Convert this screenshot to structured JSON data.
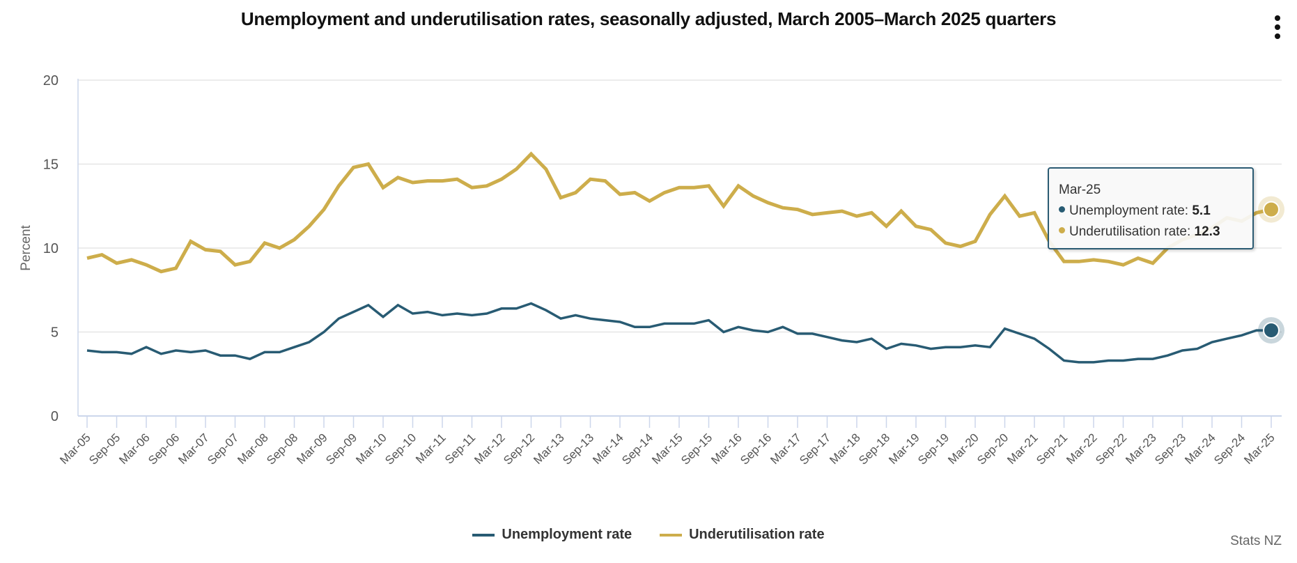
{
  "title": "Unemployment and underutilisation rates, seasonally adjusted, March 2005–March 2025 quarters",
  "menu_icon": "kebab-menu-icon",
  "credit": "Stats NZ",
  "colors": {
    "unemployment": "#285b73",
    "underutilisation": "#cdad4b",
    "grid": "#e6e6e6",
    "axis": "#ccd6eb"
  },
  "tooltip": {
    "date": "Mar-25",
    "rows": [
      {
        "label": "Unemployment rate: ",
        "value": "5.1"
      },
      {
        "label": "Underutilisation rate: ",
        "value": "12.3"
      }
    ]
  },
  "legend": [
    {
      "label": "Unemployment rate"
    },
    {
      "label": "Underutilisation rate"
    }
  ],
  "chart_data": {
    "type": "line",
    "title": "Unemployment and underutilisation rates, seasonally adjusted, March 2005–March 2025 quarters",
    "xlabel": "",
    "ylabel": "Percent",
    "ylim": [
      0,
      20
    ],
    "yticks": [
      "0",
      "5",
      "10",
      "15",
      "20"
    ],
    "ytick_values": [
      0,
      5,
      10,
      15,
      20
    ],
    "grid": true,
    "legend_position": "bottom",
    "x_tick_labels": [
      "Mar-05",
      "Sep-05",
      "Mar-06",
      "Sep-06",
      "Mar-07",
      "Sep-07",
      "Mar-08",
      "Sep-08",
      "Mar-09",
      "Sep-09",
      "Mar-10",
      "Sep-10",
      "Mar-11",
      "Sep-11",
      "Mar-12",
      "Sep-12",
      "Mar-13",
      "Sep-13",
      "Mar-14",
      "Sep-14",
      "Mar-15",
      "Sep-15",
      "Mar-16",
      "Sep-16",
      "Mar-17",
      "Sep-17",
      "Mar-18",
      "Sep-18",
      "Mar-19",
      "Sep-19",
      "Mar-20",
      "Sep-20",
      "Mar-21",
      "Sep-21",
      "Mar-22",
      "Sep-22",
      "Mar-23",
      "Sep-23",
      "Mar-24",
      "Sep-24",
      "Mar-25"
    ],
    "n_quarters": 81,
    "series": [
      {
        "name": "Unemployment rate",
        "values": [
          3.9,
          3.8,
          3.8,
          3.7,
          4.1,
          3.7,
          3.9,
          3.8,
          3.9,
          3.6,
          3.6,
          3.4,
          3.8,
          3.8,
          4.1,
          4.4,
          5.0,
          5.8,
          6.2,
          6.6,
          5.9,
          6.6,
          6.1,
          6.2,
          6.0,
          6.1,
          6.0,
          6.1,
          6.4,
          6.4,
          6.7,
          6.3,
          5.8,
          6.0,
          5.8,
          5.7,
          5.6,
          5.3,
          5.3,
          5.5,
          5.5,
          5.5,
          5.7,
          5.0,
          5.3,
          5.1,
          5.0,
          5.3,
          4.9,
          4.9,
          4.7,
          4.5,
          4.4,
          4.6,
          4.0,
          4.3,
          4.2,
          4.0,
          4.1,
          4.1,
          4.2,
          4.1,
          5.2,
          4.9,
          4.6,
          4.0,
          3.3,
          3.2,
          3.2,
          3.3,
          3.3,
          3.4,
          3.4,
          3.6,
          3.9,
          4.0,
          4.4,
          4.6,
          4.8,
          5.1,
          5.1
        ]
      },
      {
        "name": "Underutilisation rate",
        "values": [
          9.4,
          9.6,
          9.1,
          9.3,
          9.0,
          8.6,
          8.8,
          10.4,
          9.9,
          9.8,
          9.0,
          9.2,
          10.3,
          10.0,
          10.5,
          11.3,
          12.3,
          13.7,
          14.8,
          15.0,
          13.6,
          14.2,
          13.9,
          14.0,
          14.0,
          14.1,
          13.6,
          13.7,
          14.1,
          14.7,
          15.6,
          14.7,
          13.0,
          13.3,
          14.1,
          14.0,
          13.2,
          13.3,
          12.8,
          13.3,
          13.6,
          13.6,
          13.7,
          12.5,
          13.7,
          13.1,
          12.7,
          12.4,
          12.3,
          12.0,
          12.1,
          12.2,
          11.9,
          12.1,
          11.3,
          12.2,
          11.3,
          11.1,
          10.3,
          10.1,
          10.4,
          12.0,
          13.1,
          11.9,
          12.1,
          10.4,
          9.2,
          9.2,
          9.3,
          9.2,
          9.0,
          9.4,
          9.1,
          10.0,
          10.5,
          10.8,
          11.2,
          11.8,
          11.6,
          12.1,
          12.3
        ]
      }
    ]
  }
}
